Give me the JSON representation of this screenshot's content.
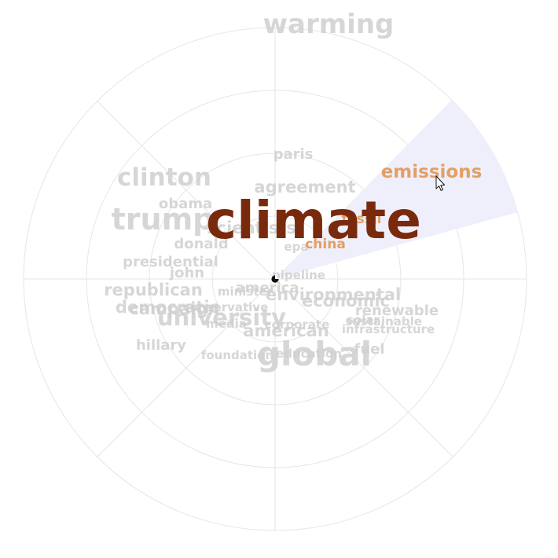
{
  "center_word": {
    "text": "climate",
    "color": "#7a2a0c"
  },
  "highlight": {
    "color": "#efeffc"
  },
  "colors": {
    "grid": "#e6e6e6",
    "word_default": "#cfcfcf",
    "word_dark": "#b8b8b8",
    "word_highlight": "#e39a5a"
  },
  "icons": {
    "center": "pie-toggle-icon",
    "cursor": "arrow-cursor-icon"
  },
  "words": [
    {
      "text": "warming",
      "style": "xl"
    },
    {
      "text": "paris",
      "style": "s"
    },
    {
      "text": "agreement",
      "style": "m"
    },
    {
      "text": "emissions",
      "style": "hl"
    },
    {
      "text": "clinton",
      "style": "l"
    },
    {
      "text": "obama",
      "style": "s"
    },
    {
      "text": "trump",
      "style": "xl2"
    },
    {
      "text": "scientists",
      "style": "m"
    },
    {
      "text": "fossil",
      "style": "hls"
    },
    {
      "text": "donald",
      "style": "s"
    },
    {
      "text": "epa",
      "style": "xs"
    },
    {
      "text": "china",
      "style": "hls"
    },
    {
      "text": "presidential",
      "style": "s"
    },
    {
      "text": "john",
      "style": "s"
    },
    {
      "text": "pipeline",
      "style": "xs"
    },
    {
      "text": "republican",
      "style": "m"
    },
    {
      "text": "america",
      "style": "s"
    },
    {
      "text": "minister",
      "style": "xs"
    },
    {
      "text": "environmental",
      "style": "m"
    },
    {
      "text": "democratic",
      "style": "m"
    },
    {
      "text": "campaign",
      "style": "m"
    },
    {
      "text": "economic",
      "style": "m"
    },
    {
      "text": "renewable",
      "style": "s"
    },
    {
      "text": "conservative",
      "style": "xs"
    },
    {
      "text": "university",
      "style": "l2"
    },
    {
      "text": "solar",
      "style": "xs"
    },
    {
      "text": "sustainable",
      "style": "xs"
    },
    {
      "text": "media",
      "style": "xs"
    },
    {
      "text": "corporate",
      "style": "xs"
    },
    {
      "text": "american",
      "style": "m"
    },
    {
      "text": "infrastructure",
      "style": "xs"
    },
    {
      "text": "hillary",
      "style": "s"
    },
    {
      "text": "foundation",
      "style": "xs"
    },
    {
      "text": "education",
      "style": "xs"
    },
    {
      "text": "global",
      "style": "xl3"
    },
    {
      "text": "fuel",
      "style": "s"
    }
  ]
}
